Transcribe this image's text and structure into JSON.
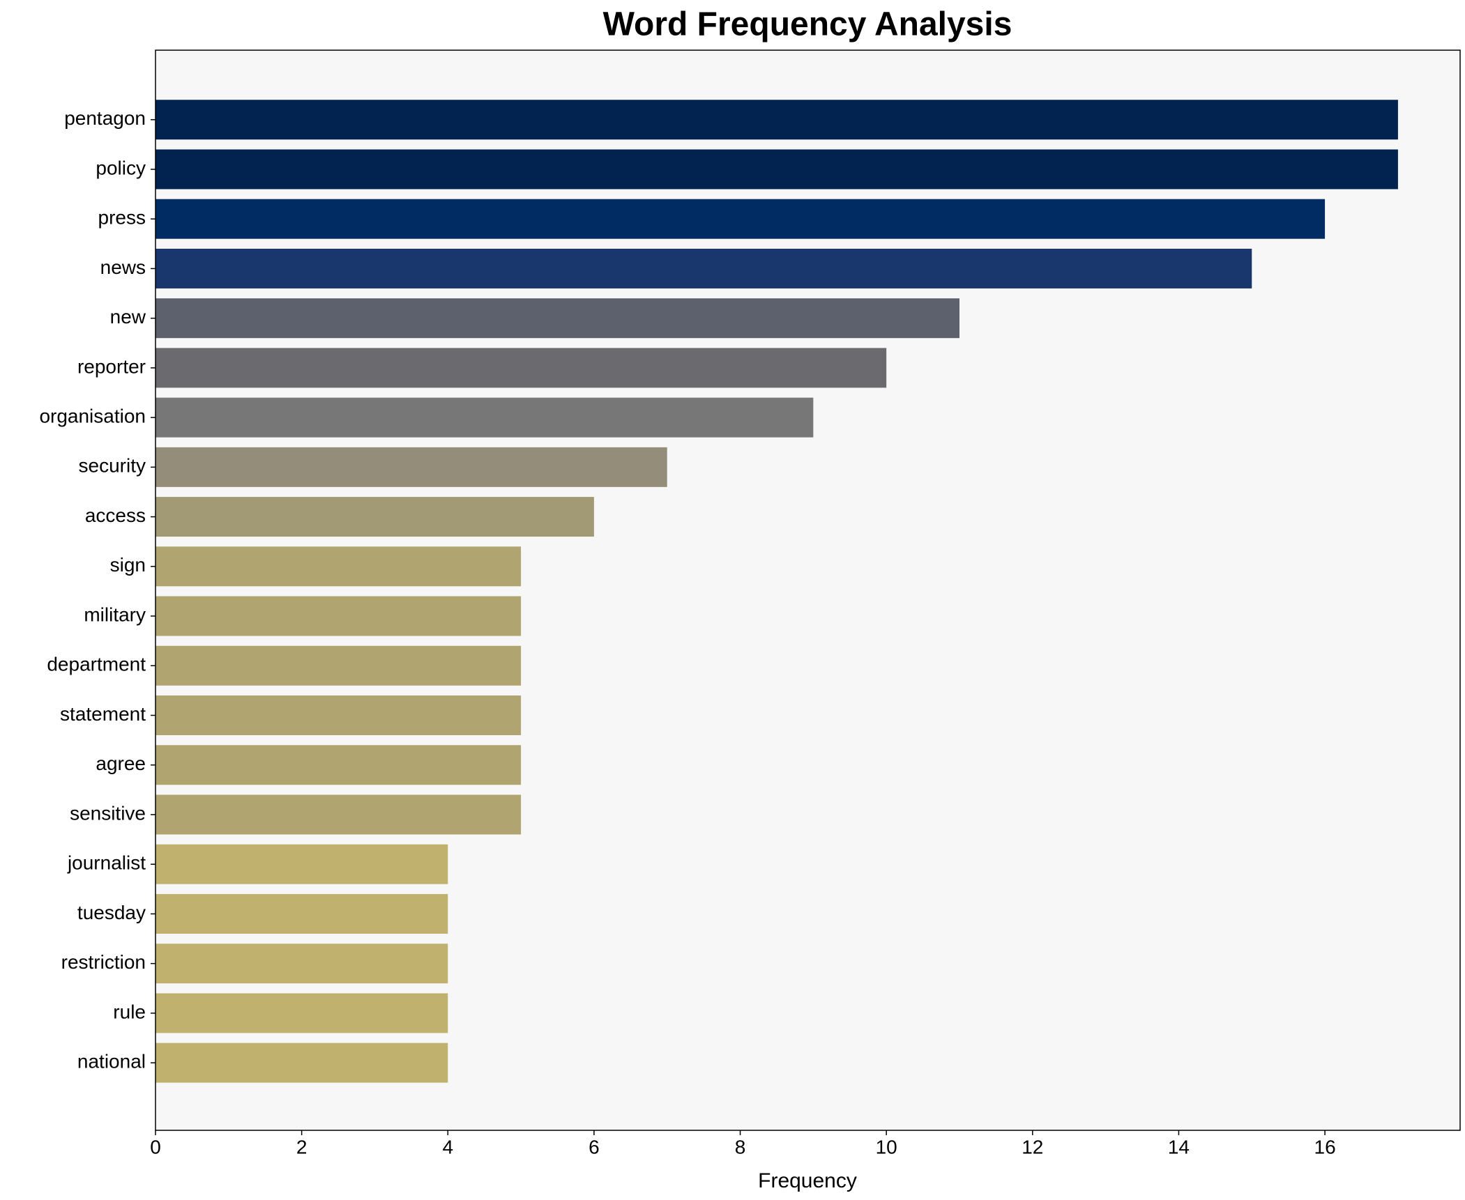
{
  "chart_data": {
    "type": "barh",
    "title": "Word Frequency Analysis",
    "x_label": "Frequency",
    "categories": [
      "pentagon",
      "policy",
      "press",
      "news",
      "new",
      "reporter",
      "organisation",
      "security",
      "access",
      "sign",
      "military",
      "department",
      "statement",
      "agree",
      "sensitive",
      "journalist",
      "tuesday",
      "restriction",
      "rule",
      "national"
    ],
    "values": [
      17,
      17,
      16,
      15,
      11,
      10,
      9,
      7,
      6,
      5,
      5,
      5,
      5,
      5,
      5,
      4,
      4,
      4,
      4,
      4
    ],
    "colors": [
      "#022350",
      "#022350",
      "#002b63",
      "#19376d",
      "#5c616d",
      "#6b6b6f",
      "#777777",
      "#948d79",
      "#a29a74",
      "#b0a470",
      "#b0a470",
      "#b0a470",
      "#b0a470",
      "#b0a470",
      "#b0a470",
      "#c0b26e",
      "#c0b26e",
      "#c0b26e",
      "#c0b26e",
      "#c0b26e"
    ],
    "xlim": [
      0,
      17.85
    ],
    "xticks": [
      0,
      2,
      4,
      6,
      8,
      10,
      12,
      14,
      16
    ],
    "background": "#f7f7f7"
  }
}
